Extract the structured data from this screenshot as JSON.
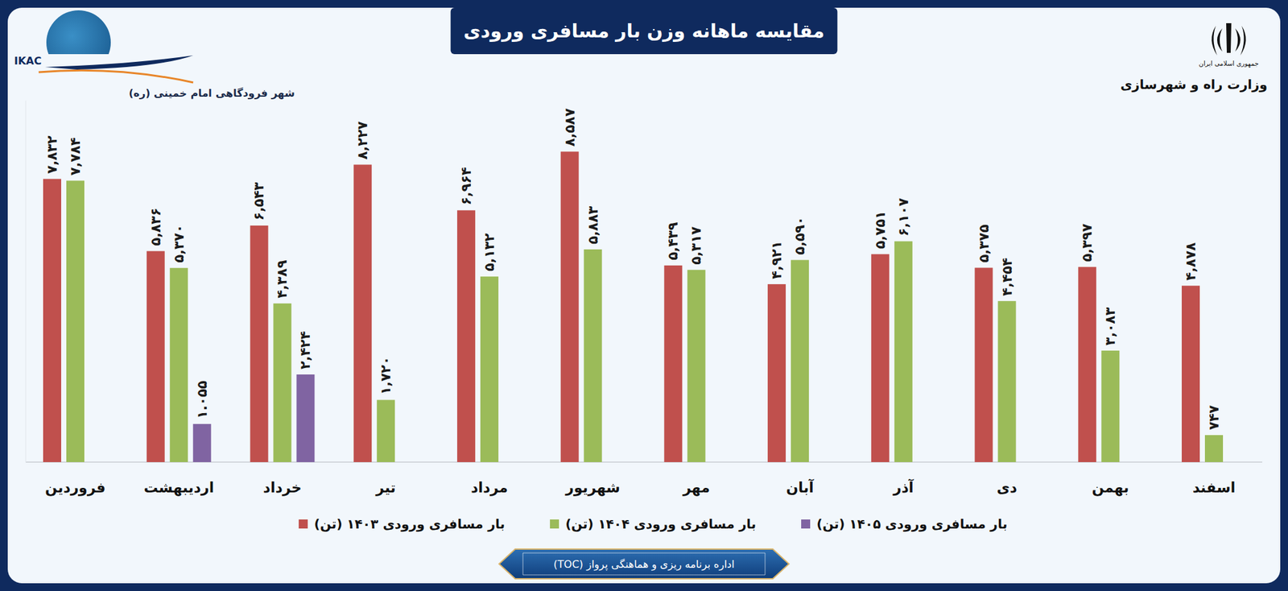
{
  "page": {
    "logo": "IKAC",
    "logo_caption": "شهر فرودگاهی امام خمینی (ره)",
    "emblem_caption": "جمهوری اسلامی ایران",
    "ministry": "وزارت راه و شهرسازی",
    "footer": "اداره برنامه ریزی و هماهنگی پرواز (TOC)"
  },
  "chart_data": {
    "type": "bar",
    "title": "مقایسه ماهانه وزن بار مسافری ورودی",
    "categories": [
      "فروردین",
      "اردیبهشت",
      "خرداد",
      "تیر",
      "مرداد",
      "شهریور",
      "مهر",
      "آبان",
      "آذر",
      "دی",
      "بهمن",
      "اسفند"
    ],
    "series": [
      {
        "name": "بار مسافری ورودی ۱۴۰۳ (تن)",
        "color": "#c0504d",
        "values": [
          7832,
          5836,
          6543,
          8227,
          6964,
          8587,
          5439,
          4921,
          5751,
          5375,
          5397,
          4878
        ],
        "value_labels": [
          "۷,۸۳۲",
          "۵,۸۳۶",
          "۶,۵۴۳",
          "۸,۲۲۷",
          "۶,۹۶۴",
          "۸,۵۸۷",
          "۵,۴۳۹",
          "۴,۹۲۱",
          "۵,۷۵۱",
          "۵,۳۷۵",
          "۵,۳۹۷",
          "۴,۸۷۸"
        ]
      },
      {
        "name": "بار مسافری ورودی ۱۴۰۴ (تن)",
        "color": "#9bbb59",
        "values": [
          7784,
          5370,
          4389,
          1720,
          5132,
          5883,
          5317,
          5590,
          6107,
          4454,
          3083,
          747
        ],
        "value_labels": [
          "۷,۷۸۴",
          "۵,۳۷۰",
          "۴,۳۸۹",
          "۱,۷۲۰",
          "۵,۱۳۲",
          "۵,۸۸۳",
          "۵,۳۱۷",
          "۵,۵۹۰",
          "۶,۱۰۷",
          "۴,۴۵۴",
          "۳,۰۸۳",
          "۷۴۷"
        ]
      },
      {
        "name": "بار مسافری ورودی ۱۴۰۵ (تن)",
        "color": "#8064a2",
        "values": [
          null,
          1055,
          2424,
          null,
          null,
          null,
          null,
          null,
          null,
          null,
          null,
          null
        ],
        "value_labels": [
          null,
          "۱.۰۵۵",
          "۲,۴۲۴",
          null,
          null,
          null,
          null,
          null,
          null,
          null,
          null,
          null
        ]
      }
    ],
    "ylim": [
      0,
      10000
    ],
    "tick_labels": "x",
    "data_labels": true,
    "grid": false,
    "legend": "bottom"
  }
}
